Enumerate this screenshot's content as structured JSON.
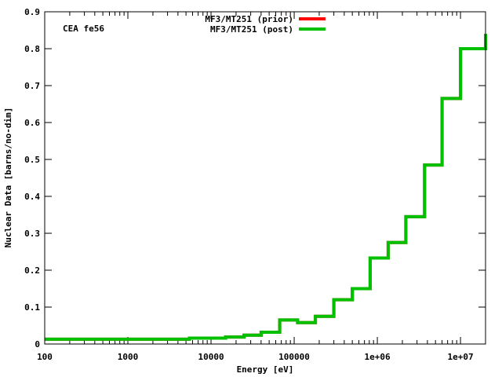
{
  "chart_data": {
    "type": "line",
    "title": "",
    "xlabel": "Energy [eV]",
    "ylabel": "Nuclear Data [barns/no-dim]",
    "xscale": "log",
    "xlim": [
      100,
      20000000
    ],
    "ylim": [
      0,
      0.9
    ],
    "grid": false,
    "legend_position": "top-center",
    "annotation": "CEA fe56",
    "x_ticks": [
      100,
      1000,
      10000,
      100000,
      1000000,
      10000000
    ],
    "x_tick_labels": [
      "100",
      "1000",
      "10000",
      "100000",
      "1e+06",
      "1e+07"
    ],
    "y_ticks": [
      0,
      0.1,
      0.2,
      0.3,
      0.4,
      0.5,
      0.6,
      0.7,
      0.8,
      0.9
    ],
    "y_tick_labels": [
      "0",
      "0.1",
      "0.2",
      "0.3",
      "0.4",
      "0.5",
      "0.6",
      "0.7",
      "0.8",
      "0.9"
    ],
    "series": [
      {
        "name": "MF3/MT251 (prior)",
        "color": "#ff0000",
        "step": true,
        "x": [
          100,
          3000,
          5500,
          15000,
          25000,
          40000,
          67000,
          110000,
          180000,
          300000,
          500000,
          820000,
          1350000,
          2200000,
          3700000,
          6000000,
          10000000,
          20000000
        ],
        "y": [
          0.013,
          0.013,
          0.016,
          0.019,
          0.024,
          0.032,
          0.065,
          0.058,
          0.075,
          0.12,
          0.15,
          0.233,
          0.275,
          0.345,
          0.485,
          0.665,
          0.8,
          0.84
        ]
      },
      {
        "name": "MF3/MT251 (post)",
        "color": "#00c000",
        "step": true,
        "x": [
          100,
          3000,
          5500,
          15000,
          25000,
          40000,
          67000,
          110000,
          180000,
          300000,
          500000,
          820000,
          1350000,
          2200000,
          3700000,
          6000000,
          10000000,
          20000000
        ],
        "y": [
          0.013,
          0.013,
          0.016,
          0.019,
          0.024,
          0.032,
          0.065,
          0.058,
          0.075,
          0.12,
          0.15,
          0.233,
          0.275,
          0.345,
          0.485,
          0.665,
          0.8,
          0.84
        ]
      }
    ]
  }
}
